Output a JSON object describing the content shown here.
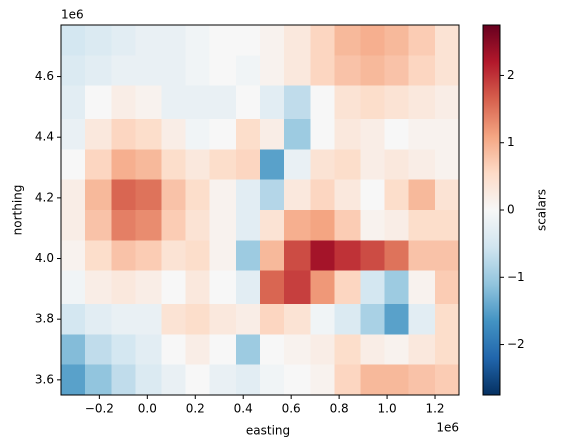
{
  "chart_data": {
    "type": "heatmap",
    "x_label": "easting",
    "y_label": "northing",
    "colorbar_label": "scalars",
    "x_offset_text": "1e6",
    "y_offset_text": "1e6",
    "xlim": [
      -0.36,
      1.3
    ],
    "ylim": [
      3.55,
      4.77
    ],
    "xticks": [
      {
        "value": -0.2,
        "label": "−0.2"
      },
      {
        "value": 0,
        "label": "0.0"
      },
      0.2,
      0.4,
      0.6,
      0.8,
      {
        "value": 1,
        "label": "1.0"
      },
      1.2
    ],
    "yticks": [
      3.6,
      3.8,
      {
        "value": 4,
        "label": "4.0"
      },
      4.2,
      4.4,
      4.6
    ],
    "x_edges": [
      -0.36,
      -0.26,
      -0.15,
      -0.05,
      0.06,
      0.16,
      0.26,
      0.37,
      0.47,
      0.57,
      0.68,
      0.78,
      0.89,
      0.99,
      1.09,
      1.2,
      1.3
    ],
    "y_edges": [
      4.77,
      4.67,
      4.57,
      4.46,
      4.36,
      4.26,
      4.16,
      4.06,
      3.96,
      3.85,
      3.75,
      3.65,
      3.55
    ],
    "z": [
      [
        -0.5,
        -0.4,
        -0.3,
        -0.2,
        -0.2,
        -0.1,
        0,
        0,
        0.1,
        0.3,
        0.6,
        0.9,
        1.0,
        0.9,
        0.7,
        0.4
      ],
      [
        -0.4,
        -0.3,
        -0.2,
        -0.2,
        -0.2,
        -0.1,
        0,
        -0.1,
        0.1,
        0.3,
        0.6,
        0.8,
        0.9,
        0.8,
        0.6,
        0.4
      ],
      [
        -0.3,
        0,
        0.2,
        0.1,
        -0.2,
        -0.2,
        -0.2,
        0,
        -0.3,
        -0.7,
        0,
        0.4,
        0.5,
        0.4,
        0.3,
        0.2
      ],
      [
        -0.2,
        0.3,
        0.6,
        0.5,
        0.2,
        -0.1,
        0,
        0.5,
        0.2,
        -1.0,
        0,
        0.3,
        0.2,
        0,
        0.1,
        0.1
      ],
      [
        0,
        0.6,
        1.0,
        0.9,
        0.5,
        0.3,
        0.5,
        0.6,
        -1.5,
        -0.2,
        0.4,
        0.5,
        0.2,
        0.3,
        0.2,
        0.1
      ],
      [
        0.2,
        0.9,
        1.6,
        1.5,
        0.8,
        0.5,
        0.1,
        -0.3,
        -0.8,
        0.3,
        0.6,
        0.3,
        0,
        0.5,
        0.9,
        0.4
      ],
      [
        0.2,
        0.8,
        1.4,
        1.3,
        0.7,
        0.4,
        0.1,
        -0.3,
        0.4,
        1.0,
        1.1,
        0.7,
        0.1,
        0.2,
        0.5,
        0.5
      ],
      [
        0.1,
        0.5,
        0.8,
        0.7,
        0.4,
        0.5,
        0.1,
        -1.0,
        0.9,
        1.8,
        2.3,
        2.0,
        1.8,
        1.5,
        0.8,
        0.8
      ],
      [
        -0.1,
        0.2,
        0.3,
        0.2,
        0,
        0.3,
        0,
        -0.3,
        1.6,
        1.9,
        1.2,
        0.6,
        -0.5,
        -1.0,
        0.1,
        0.7
      ],
      [
        -0.5,
        -0.3,
        -0.2,
        -0.2,
        0.4,
        0.5,
        0.3,
        0.2,
        0.6,
        0.4,
        -0.1,
        -0.4,
        -0.9,
        -1.5,
        -0.3,
        0.5
      ],
      [
        -1.2,
        -0.7,
        -0.5,
        -0.3,
        0,
        0.2,
        0,
        -1.0,
        0,
        0.1,
        0.2,
        0.5,
        0.2,
        0.1,
        0.3,
        0.5
      ],
      [
        -1.5,
        -1.1,
        -0.7,
        -0.4,
        -0.2,
        0,
        -0.2,
        -0.3,
        -0.1,
        0,
        0.1,
        0.6,
        0.9,
        0.9,
        0.8,
        0.7
      ]
    ],
    "clim": [
      -2.75,
      2.75
    ],
    "cticks": [
      {
        "value": -2,
        "label": "−2"
      },
      {
        "value": -1,
        "label": "−1"
      },
      0,
      1,
      2
    ],
    "colormap": [
      "#053061",
      "#2166ac",
      "#4393c3",
      "#92c5de",
      "#d1e5f0",
      "#f7f7f7",
      "#fddbc7",
      "#f4a582",
      "#d6604d",
      "#b2182b",
      "#67001f"
    ]
  }
}
